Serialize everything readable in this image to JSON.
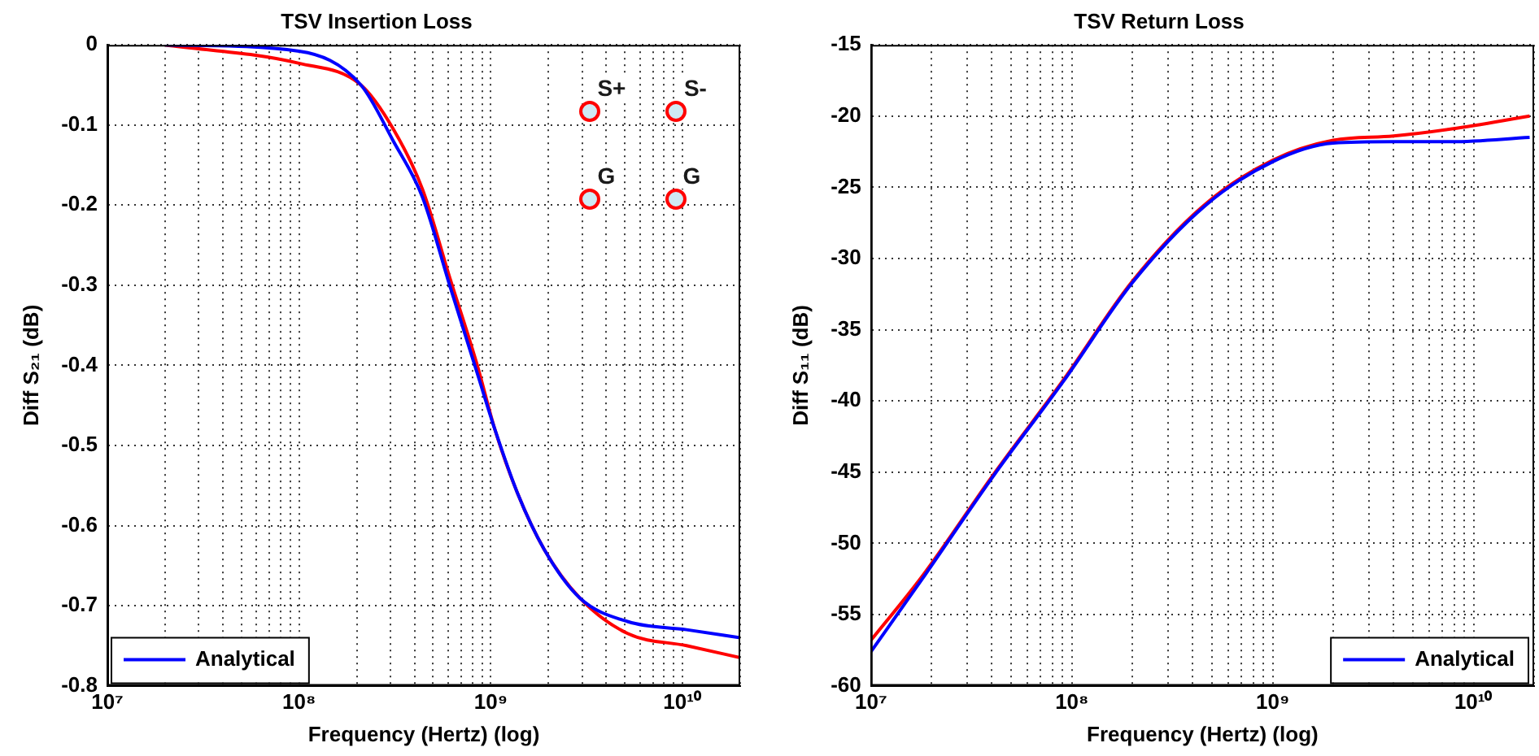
{
  "chart_data": [
    {
      "type": "line",
      "title": "TSV Insertion Loss",
      "xlabel": "Frequency (Hertz) (log)",
      "ylabel": "Diff S₂₁ (dB)",
      "log": "x",
      "grid": true,
      "legend": "bottom left",
      "xlim": [
        10000000.0,
        20000000000.0
      ],
      "xticks": [
        {
          "value": 10000000.0,
          "label": "10⁷"
        },
        {
          "value": 20000000.0,
          "label": null
        },
        {
          "value": 30000000.0,
          "label": null
        },
        {
          "value": 40000000.0,
          "label": null
        },
        {
          "value": 50000000.0,
          "label": null
        },
        {
          "value": 60000000.0,
          "label": null
        },
        {
          "value": 70000000.0,
          "label": null
        },
        {
          "value": 80000000.0,
          "label": null
        },
        {
          "value": 90000000.0,
          "label": null
        },
        {
          "value": 100000000.0,
          "label": "10⁸"
        },
        {
          "value": 200000000.0,
          "label": null
        },
        {
          "value": 300000000.0,
          "label": null
        },
        {
          "value": 400000000.0,
          "label": null
        },
        {
          "value": 500000000.0,
          "label": null
        },
        {
          "value": 600000000.0,
          "label": null
        },
        {
          "value": 700000000.0,
          "label": null
        },
        {
          "value": 800000000.0,
          "label": null
        },
        {
          "value": 900000000.0,
          "label": null
        },
        {
          "value": 1000000000.0,
          "label": "10⁹"
        },
        {
          "value": 2000000000.0,
          "label": null
        },
        {
          "value": 3000000000.0,
          "label": null
        },
        {
          "value": 4000000000.0,
          "label": null
        },
        {
          "value": 5000000000.0,
          "label": null
        },
        {
          "value": 6000000000.0,
          "label": null
        },
        {
          "value": 7000000000.0,
          "label": null
        },
        {
          "value": 8000000000.0,
          "label": null
        },
        {
          "value": 9000000000.0,
          "label": null
        },
        {
          "value": 10000000000.0,
          "label": "10¹⁰"
        },
        {
          "value": 20000000000.0,
          "label": null
        }
      ],
      "ylim": [
        -0.8,
        0
      ],
      "yticks": [
        -0.8,
        -0.7,
        -0.6,
        -0.5,
        -0.4,
        -0.3,
        -0.2,
        -0.1,
        0
      ],
      "annotations": [
        "S+",
        "S-",
        "G",
        "G"
      ],
      "series": [
        {
          "color": "#ff0000",
          "x": [
            20000000.0,
            100000000.0,
            210000000.0,
            310000000.0,
            440000000.0,
            610000000.0,
            850000000.0,
            1050000000.0,
            1380000000.0,
            1900000000.0,
            2900000000.0,
            5200000000.0,
            10500000000.0,
            20000000000.0
          ],
          "values": [
            0,
            -0.023,
            -0.05,
            -0.105,
            -0.18,
            -0.29,
            -0.4,
            -0.48,
            -0.56,
            -0.63,
            -0.69,
            -0.735,
            -0.75,
            -0.765
          ]
        },
        {
          "name": "Analytical",
          "color": "#0000ff",
          "x": [
            20000000.0,
            100000000.0,
            210000000.0,
            310000000.0,
            440000000.0,
            610000000.0,
            850000000.0,
            1050000000.0,
            1380000000.0,
            1900000000.0,
            2900000000.0,
            5200000000.0,
            10500000000.0,
            20000000000.0
          ],
          "values": [
            0,
            -0.008,
            -0.05,
            -0.12,
            -0.19,
            -0.3,
            -0.41,
            -0.48,
            -0.56,
            -0.63,
            -0.69,
            -0.72,
            -0.73,
            -0.74
          ]
        }
      ]
    },
    {
      "type": "line",
      "title": "TSV Return Loss",
      "xlabel": "Frequency (Hertz) (log)",
      "ylabel": "Diff S₁₁ (dB)",
      "log": "x",
      "grid": true,
      "legend": "bottom right",
      "xlim": [
        10000000.0,
        20000000000.0
      ],
      "xticks": [
        {
          "value": 10000000.0,
          "label": "10⁷"
        },
        {
          "value": 20000000.0,
          "label": null
        },
        {
          "value": 30000000.0,
          "label": null
        },
        {
          "value": 40000000.0,
          "label": null
        },
        {
          "value": 50000000.0,
          "label": null
        },
        {
          "value": 60000000.0,
          "label": null
        },
        {
          "value": 70000000.0,
          "label": null
        },
        {
          "value": 80000000.0,
          "label": null
        },
        {
          "value": 90000000.0,
          "label": null
        },
        {
          "value": 100000000.0,
          "label": "10⁸"
        },
        {
          "value": 200000000.0,
          "label": null
        },
        {
          "value": 300000000.0,
          "label": null
        },
        {
          "value": 400000000.0,
          "label": null
        },
        {
          "value": 500000000.0,
          "label": null
        },
        {
          "value": 600000000.0,
          "label": null
        },
        {
          "value": 700000000.0,
          "label": null
        },
        {
          "value": 800000000.0,
          "label": null
        },
        {
          "value": 900000000.0,
          "label": null
        },
        {
          "value": 1000000000.0,
          "label": "10⁹"
        },
        {
          "value": 2000000000.0,
          "label": null
        },
        {
          "value": 3000000000.0,
          "label": null
        },
        {
          "value": 4000000000.0,
          "label": null
        },
        {
          "value": 5000000000.0,
          "label": null
        },
        {
          "value": 6000000000.0,
          "label": null
        },
        {
          "value": 7000000000.0,
          "label": null
        },
        {
          "value": 8000000000.0,
          "label": null
        },
        {
          "value": 9000000000.0,
          "label": null
        },
        {
          "value": 10000000000.0,
          "label": "10¹⁰"
        },
        {
          "value": 20000000000.0,
          "label": null
        }
      ],
      "ylim": [
        -60,
        -15
      ],
      "yticks": [
        -60,
        -55,
        -50,
        -45,
        -40,
        -35,
        -30,
        -25,
        -20,
        -15
      ],
      "series": [
        {
          "color": "#ff0000",
          "x": [
            10000000.0,
            18000000.0,
            41000000.0,
            91000000.0,
            200000000.0,
            460000000.0,
            1000000000.0,
            2000000000.0,
            4000000000.0,
            7800000000.0,
            19000000000.0
          ],
          "values": [
            -56.8,
            -52.3,
            -45.1,
            -38.5,
            -31.6,
            -26.2,
            -23.1,
            -21.7,
            -21.4,
            -20.9,
            -20
          ]
        },
        {
          "name": "Analytical",
          "color": "#0000ff",
          "x": [
            10000000.0,
            18000000.0,
            41000000.0,
            91000000.0,
            200000000.0,
            460000000.0,
            1000000000.0,
            2000000000.0,
            4000000000.0,
            7800000000.0,
            19000000000.0
          ],
          "values": [
            -57.6,
            -52.5,
            -45.2,
            -38.6,
            -31.7,
            -26.3,
            -23.2,
            -21.9,
            -21.8,
            -21.8,
            -21.5
          ]
        }
      ]
    }
  ]
}
